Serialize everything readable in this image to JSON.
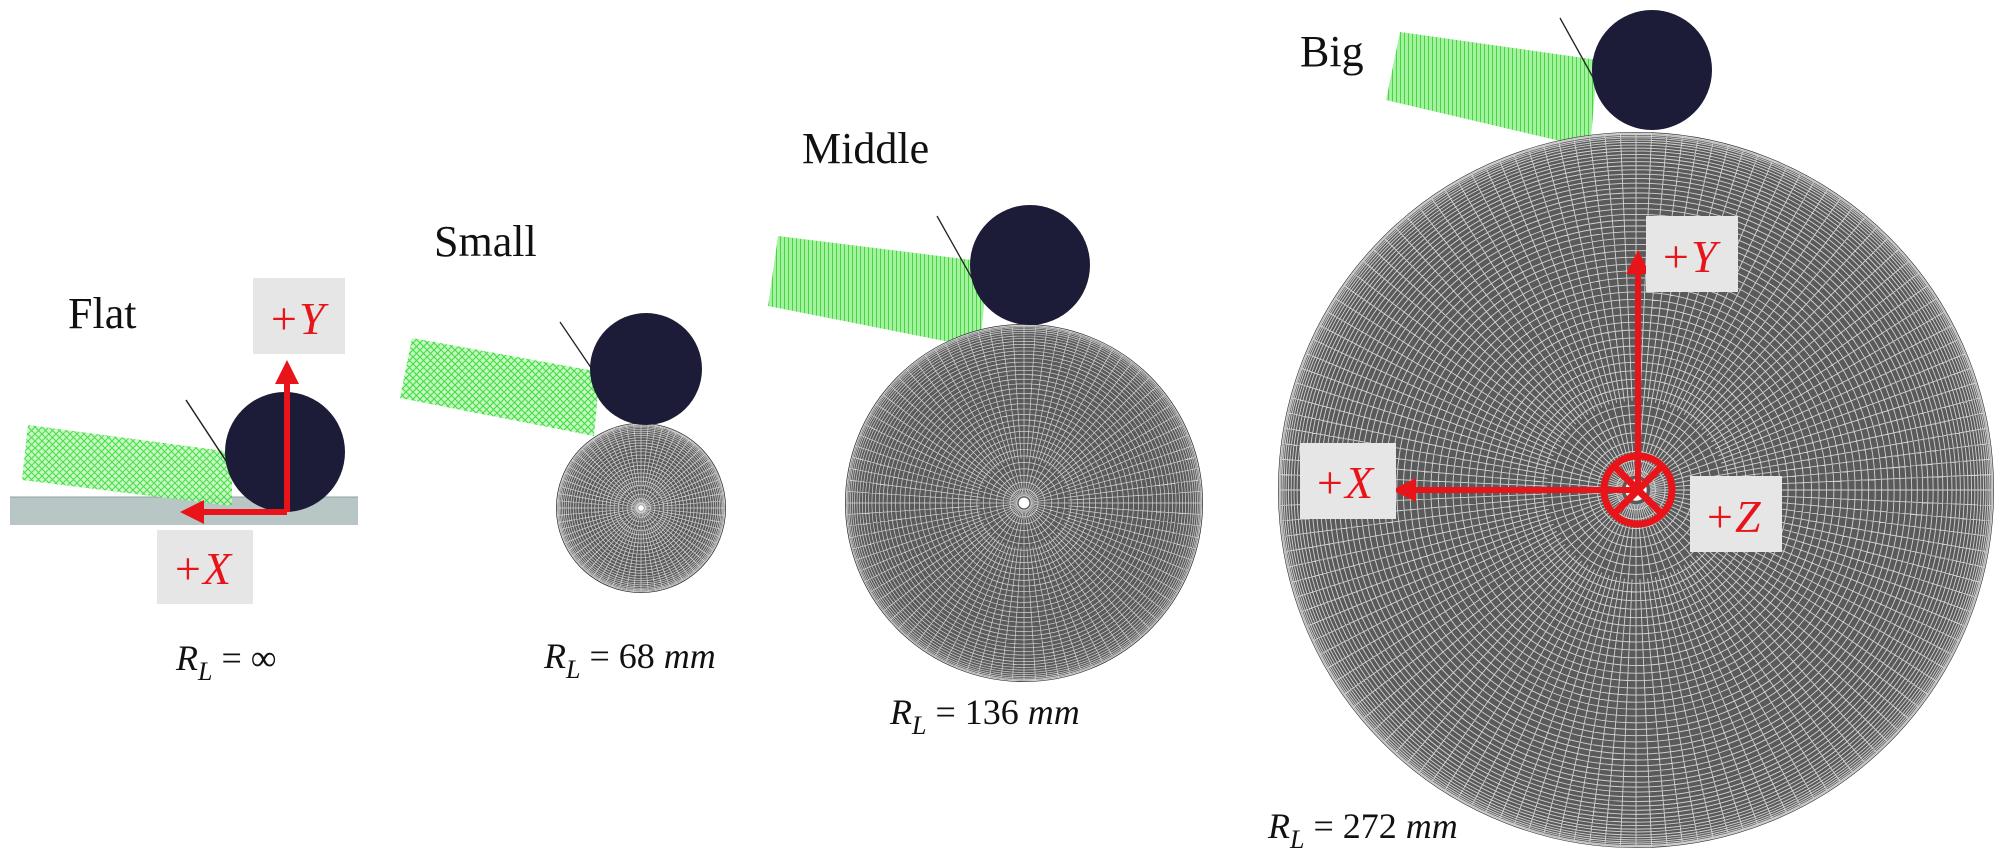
{
  "cases": [
    {
      "name": "Flat",
      "radius": {
        "symbol": "R",
        "subscript": "L",
        "value": "∞",
        "unit": ""
      }
    },
    {
      "name": "Small",
      "radius": {
        "symbol": "R",
        "subscript": "L",
        "value": "68",
        "unit": "mm"
      }
    },
    {
      "name": "Middle",
      "radius": {
        "symbol": "R",
        "subscript": "L",
        "value": "136",
        "unit": "mm"
      }
    },
    {
      "name": "Big",
      "radius": {
        "symbol": "R",
        "subscript": "L",
        "value": "272",
        "unit": "mm"
      }
    }
  ],
  "axes": {
    "flat": {
      "y_label": "+Y",
      "x_label": "+X"
    },
    "big": {
      "y_label": "+Y",
      "x_label": "+X",
      "z_label": "+Z"
    }
  },
  "colors": {
    "axis_arrow": "#e8141a",
    "roller": "#1c1c38",
    "belt_mesh": "#33dd33",
    "disk_mesh_bg": "#5a5a5a",
    "disk_mesh_lines": "#e8e8e8",
    "flat_surface": "#b8c6c6",
    "label_box": "#e6e6e6"
  }
}
